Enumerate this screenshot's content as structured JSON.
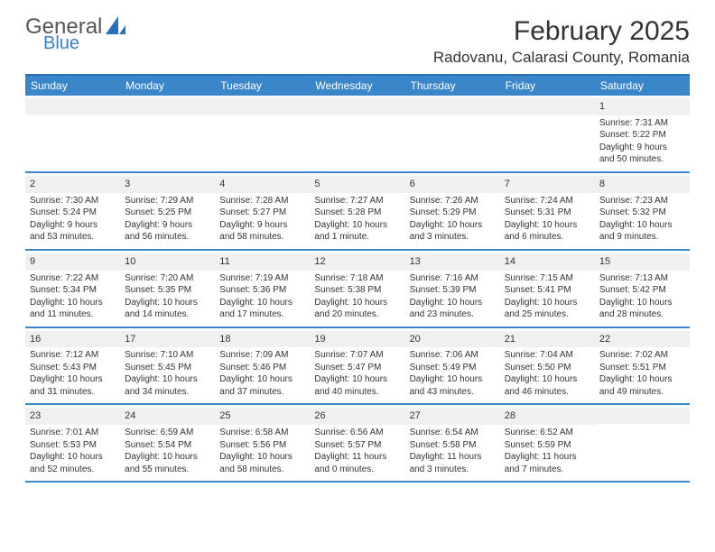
{
  "logo": {
    "text1": "General",
    "text2": "Blue"
  },
  "title": "February 2025",
  "location": "Radovanu, Calarasi County, Romania",
  "colors": {
    "header_bg": "#3b86c8",
    "divider": "#3b86c8",
    "band": "#eef0f2"
  },
  "day_headers": [
    "Sunday",
    "Monday",
    "Tuesday",
    "Wednesday",
    "Thursday",
    "Friday",
    "Saturday"
  ],
  "weeks": [
    [
      null,
      null,
      null,
      null,
      null,
      null,
      {
        "n": "1",
        "sunrise": "Sunrise: 7:31 AM",
        "sunset": "Sunset: 5:22 PM",
        "day1": "Daylight: 9 hours",
        "day2": "and 50 minutes."
      }
    ],
    [
      {
        "n": "2",
        "sunrise": "Sunrise: 7:30 AM",
        "sunset": "Sunset: 5:24 PM",
        "day1": "Daylight: 9 hours",
        "day2": "and 53 minutes."
      },
      {
        "n": "3",
        "sunrise": "Sunrise: 7:29 AM",
        "sunset": "Sunset: 5:25 PM",
        "day1": "Daylight: 9 hours",
        "day2": "and 56 minutes."
      },
      {
        "n": "4",
        "sunrise": "Sunrise: 7:28 AM",
        "sunset": "Sunset: 5:27 PM",
        "day1": "Daylight: 9 hours",
        "day2": "and 58 minutes."
      },
      {
        "n": "5",
        "sunrise": "Sunrise: 7:27 AM",
        "sunset": "Sunset: 5:28 PM",
        "day1": "Daylight: 10 hours",
        "day2": "and 1 minute."
      },
      {
        "n": "6",
        "sunrise": "Sunrise: 7:26 AM",
        "sunset": "Sunset: 5:29 PM",
        "day1": "Daylight: 10 hours",
        "day2": "and 3 minutes."
      },
      {
        "n": "7",
        "sunrise": "Sunrise: 7:24 AM",
        "sunset": "Sunset: 5:31 PM",
        "day1": "Daylight: 10 hours",
        "day2": "and 6 minutes."
      },
      {
        "n": "8",
        "sunrise": "Sunrise: 7:23 AM",
        "sunset": "Sunset: 5:32 PM",
        "day1": "Daylight: 10 hours",
        "day2": "and 9 minutes."
      }
    ],
    [
      {
        "n": "9",
        "sunrise": "Sunrise: 7:22 AM",
        "sunset": "Sunset: 5:34 PM",
        "day1": "Daylight: 10 hours",
        "day2": "and 11 minutes."
      },
      {
        "n": "10",
        "sunrise": "Sunrise: 7:20 AM",
        "sunset": "Sunset: 5:35 PM",
        "day1": "Daylight: 10 hours",
        "day2": "and 14 minutes."
      },
      {
        "n": "11",
        "sunrise": "Sunrise: 7:19 AM",
        "sunset": "Sunset: 5:36 PM",
        "day1": "Daylight: 10 hours",
        "day2": "and 17 minutes."
      },
      {
        "n": "12",
        "sunrise": "Sunrise: 7:18 AM",
        "sunset": "Sunset: 5:38 PM",
        "day1": "Daylight: 10 hours",
        "day2": "and 20 minutes."
      },
      {
        "n": "13",
        "sunrise": "Sunrise: 7:16 AM",
        "sunset": "Sunset: 5:39 PM",
        "day1": "Daylight: 10 hours",
        "day2": "and 23 minutes."
      },
      {
        "n": "14",
        "sunrise": "Sunrise: 7:15 AM",
        "sunset": "Sunset: 5:41 PM",
        "day1": "Daylight: 10 hours",
        "day2": "and 25 minutes."
      },
      {
        "n": "15",
        "sunrise": "Sunrise: 7:13 AM",
        "sunset": "Sunset: 5:42 PM",
        "day1": "Daylight: 10 hours",
        "day2": "and 28 minutes."
      }
    ],
    [
      {
        "n": "16",
        "sunrise": "Sunrise: 7:12 AM",
        "sunset": "Sunset: 5:43 PM",
        "day1": "Daylight: 10 hours",
        "day2": "and 31 minutes."
      },
      {
        "n": "17",
        "sunrise": "Sunrise: 7:10 AM",
        "sunset": "Sunset: 5:45 PM",
        "day1": "Daylight: 10 hours",
        "day2": "and 34 minutes."
      },
      {
        "n": "18",
        "sunrise": "Sunrise: 7:09 AM",
        "sunset": "Sunset: 5:46 PM",
        "day1": "Daylight: 10 hours",
        "day2": "and 37 minutes."
      },
      {
        "n": "19",
        "sunrise": "Sunrise: 7:07 AM",
        "sunset": "Sunset: 5:47 PM",
        "day1": "Daylight: 10 hours",
        "day2": "and 40 minutes."
      },
      {
        "n": "20",
        "sunrise": "Sunrise: 7:06 AM",
        "sunset": "Sunset: 5:49 PM",
        "day1": "Daylight: 10 hours",
        "day2": "and 43 minutes."
      },
      {
        "n": "21",
        "sunrise": "Sunrise: 7:04 AM",
        "sunset": "Sunset: 5:50 PM",
        "day1": "Daylight: 10 hours",
        "day2": "and 46 minutes."
      },
      {
        "n": "22",
        "sunrise": "Sunrise: 7:02 AM",
        "sunset": "Sunset: 5:51 PM",
        "day1": "Daylight: 10 hours",
        "day2": "and 49 minutes."
      }
    ],
    [
      {
        "n": "23",
        "sunrise": "Sunrise: 7:01 AM",
        "sunset": "Sunset: 5:53 PM",
        "day1": "Daylight: 10 hours",
        "day2": "and 52 minutes."
      },
      {
        "n": "24",
        "sunrise": "Sunrise: 6:59 AM",
        "sunset": "Sunset: 5:54 PM",
        "day1": "Daylight: 10 hours",
        "day2": "and 55 minutes."
      },
      {
        "n": "25",
        "sunrise": "Sunrise: 6:58 AM",
        "sunset": "Sunset: 5:56 PM",
        "day1": "Daylight: 10 hours",
        "day2": "and 58 minutes."
      },
      {
        "n": "26",
        "sunrise": "Sunrise: 6:56 AM",
        "sunset": "Sunset: 5:57 PM",
        "day1": "Daylight: 11 hours",
        "day2": "and 0 minutes."
      },
      {
        "n": "27",
        "sunrise": "Sunrise: 6:54 AM",
        "sunset": "Sunset: 5:58 PM",
        "day1": "Daylight: 11 hours",
        "day2": "and 3 minutes."
      },
      {
        "n": "28",
        "sunrise": "Sunrise: 6:52 AM",
        "sunset": "Sunset: 5:59 PM",
        "day1": "Daylight: 11 hours",
        "day2": "and 7 minutes."
      },
      null
    ]
  ]
}
